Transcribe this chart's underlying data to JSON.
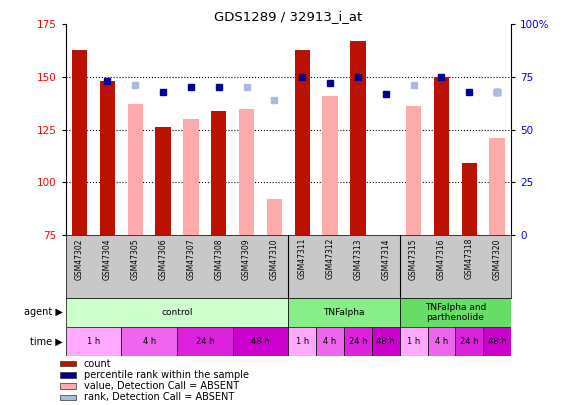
{
  "title": "GDS1289 / 32913_i_at",
  "samples": [
    "GSM47302",
    "GSM47304",
    "GSM47305",
    "GSM47306",
    "GSM47307",
    "GSM47308",
    "GSM47309",
    "GSM47310",
    "GSM47311",
    "GSM47312",
    "GSM47313",
    "GSM47314",
    "GSM47315",
    "GSM47316",
    "GSM47318",
    "GSM47320"
  ],
  "red_bars": [
    163,
    148,
    null,
    126,
    null,
    134,
    null,
    null,
    163,
    null,
    167,
    null,
    null,
    150,
    109,
    null
  ],
  "pink_bars": [
    null,
    null,
    137,
    null,
    130,
    null,
    135,
    92,
    null,
    141,
    null,
    null,
    136,
    null,
    null,
    121
  ],
  "blue_squares": [
    null,
    148,
    null,
    143,
    145,
    145,
    null,
    null,
    150,
    147,
    150,
    142,
    null,
    150,
    143,
    143
  ],
  "light_blue_squares": [
    null,
    null,
    146,
    null,
    null,
    null,
    145,
    139,
    null,
    null,
    null,
    null,
    146,
    null,
    null,
    143
  ],
  "ylim_left": [
    75,
    175
  ],
  "ylim_right": [
    0,
    100
  ],
  "yticks_left": [
    75,
    100,
    125,
    150,
    175
  ],
  "yticks_right": [
    0,
    25,
    50,
    75,
    100
  ],
  "red_color": "#BB1100",
  "pink_color": "#FFAAAA",
  "blue_color": "#000099",
  "light_blue_color": "#AABBDD",
  "agent_defs": [
    {
      "start": 0,
      "end": 8,
      "label": "control",
      "color": "#CCFFCC"
    },
    {
      "start": 8,
      "end": 12,
      "label": "TNFalpha",
      "color": "#88EE88"
    },
    {
      "start": 12,
      "end": 16,
      "label": "TNFalpha and\nparthenolide",
      "color": "#66DD66"
    }
  ],
  "time_defs": [
    {
      "start": 0,
      "end": 2,
      "label": "1 h",
      "color": "#FFAAFF"
    },
    {
      "start": 2,
      "end": 4,
      "label": "4 h",
      "color": "#EE66EE"
    },
    {
      "start": 4,
      "end": 6,
      "label": "24 h",
      "color": "#DD22DD"
    },
    {
      "start": 6,
      "end": 8,
      "label": "48 h",
      "color": "#CC00CC"
    },
    {
      "start": 8,
      "end": 9,
      "label": "1 h",
      "color": "#FFAAFF"
    },
    {
      "start": 9,
      "end": 10,
      "label": "4 h",
      "color": "#EE66EE"
    },
    {
      "start": 10,
      "end": 11,
      "label": "24 h",
      "color": "#DD22DD"
    },
    {
      "start": 11,
      "end": 12,
      "label": "48 h",
      "color": "#CC00CC"
    },
    {
      "start": 12,
      "end": 13,
      "label": "1 h",
      "color": "#FFAAFF"
    },
    {
      "start": 13,
      "end": 14,
      "label": "4 h",
      "color": "#EE66EE"
    },
    {
      "start": 14,
      "end": 15,
      "label": "24 h",
      "color": "#DD22DD"
    },
    {
      "start": 15,
      "end": 16,
      "label": "48 h",
      "color": "#CC00CC"
    }
  ],
  "legend_items": [
    {
      "label": "count",
      "color": "#BB1100"
    },
    {
      "label": "percentile rank within the sample",
      "color": "#000099"
    },
    {
      "label": "value, Detection Call = ABSENT",
      "color": "#FFAAAA"
    },
    {
      "label": "rank, Detection Call = ABSENT",
      "color": "#AABBDD"
    }
  ],
  "grid_lines": [
    100,
    125,
    150
  ]
}
